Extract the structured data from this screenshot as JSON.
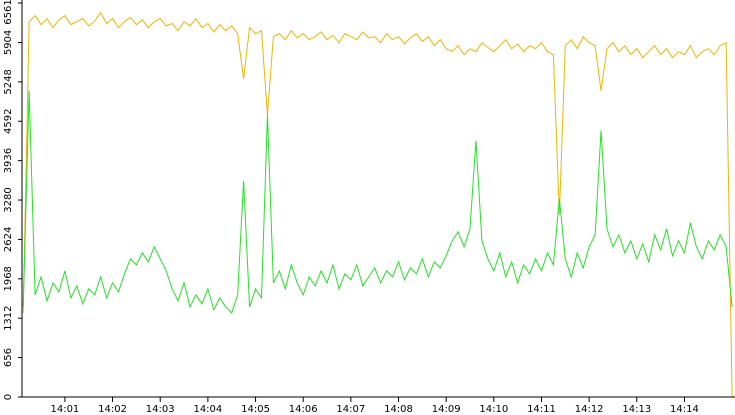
{
  "chart_data": {
    "type": "line",
    "x": [
      0.125,
      0.25,
      0.375,
      0.5,
      0.625,
      0.75,
      0.875,
      1,
      1.125,
      1.25,
      1.375,
      1.5,
      1.625,
      1.75,
      1.875,
      2,
      2.125,
      2.25,
      2.375,
      2.5,
      2.625,
      2.75,
      2.875,
      3,
      3.125,
      3.25,
      3.375,
      3.5,
      3.625,
      3.75,
      3.875,
      4,
      4.125,
      4.25,
      4.375,
      4.5,
      4.625,
      4.75,
      4.875,
      5,
      5.125,
      5.25,
      5.375,
      5.5,
      5.625,
      5.75,
      5.875,
      6,
      6.125,
      6.25,
      6.375,
      6.5,
      6.625,
      6.75,
      6.875,
      7,
      7.125,
      7.25,
      7.375,
      7.5,
      7.625,
      7.75,
      7.875,
      8,
      8.125,
      8.25,
      8.375,
      8.5,
      8.625,
      8.75,
      8.875,
      9,
      9.125,
      9.25,
      9.375,
      9.5,
      9.625,
      9.75,
      9.875,
      10,
      10.125,
      10.25,
      10.375,
      10.5,
      10.625,
      10.75,
      10.875,
      11,
      11.125,
      11.25,
      11.375,
      11.5,
      11.625,
      11.75,
      11.875,
      12,
      12.125,
      12.25,
      12.375,
      12.5,
      12.625,
      12.75,
      12.875,
      13,
      13.125,
      13.25,
      13.375,
      13.5,
      13.625,
      13.75,
      13.875,
      14,
      14.125,
      14.25,
      14.375,
      14.5,
      14.625,
      14.75,
      14.875,
      15
    ],
    "series": [
      {
        "color": "#f0b400",
        "values": [
          1400,
          6250,
          6350,
          6200,
          6300,
          6150,
          6280,
          6350,
          6200,
          6250,
          6300,
          6180,
          6260,
          6400,
          6220,
          6300,
          6150,
          6250,
          6320,
          6200,
          6280,
          6150,
          6250,
          6300,
          6180,
          6220,
          6100,
          6250,
          6180,
          6300,
          6150,
          6220,
          6080,
          6200,
          6100,
          6180,
          6050,
          5300,
          6150,
          6050,
          6100,
          4700,
          6000,
          6050,
          5950,
          6100,
          5980,
          6050,
          5950,
          6000,
          6080,
          5950,
          6020,
          5900,
          6050,
          6000,
          5950,
          6080,
          5980,
          6000,
          5900,
          6050,
          5950,
          6000,
          5880,
          5980,
          6050,
          5920,
          6000,
          5850,
          5950,
          5800,
          5750,
          5850,
          5700,
          5800,
          5750,
          5900,
          5820,
          5750,
          5850,
          5950,
          5800,
          5880,
          5750,
          5850,
          5800,
          5900,
          5750,
          5700,
          3030,
          5850,
          5950,
          5800,
          6000,
          5900,
          5850,
          5100,
          5800,
          5900,
          5750,
          5850,
          5700,
          5800,
          5650,
          5750,
          5850,
          5700,
          5800,
          5650,
          5750,
          5700,
          5850,
          5650,
          5750,
          5800,
          5700,
          5850,
          5900,
          0
        ]
      },
      {
        "color": "#22e322",
        "values": [
          1500,
          5100,
          1700,
          2000,
          1600,
          1900,
          1750,
          2100,
          1650,
          1850,
          1550,
          1800,
          1700,
          2000,
          1650,
          1900,
          1750,
          2050,
          2300,
          2200,
          2400,
          2250,
          2500,
          2300,
          2100,
          1800,
          1600,
          1900,
          1500,
          1700,
          1550,
          1800,
          1450,
          1650,
          1500,
          1400,
          1700,
          3600,
          1500,
          1800,
          1650,
          4700,
          1900,
          2100,
          1800,
          2200,
          1900,
          1700,
          2000,
          1850,
          2100,
          1900,
          2200,
          1800,
          2050,
          1950,
          2200,
          1850,
          2000,
          2150,
          1900,
          2100,
          2000,
          2250,
          1950,
          2150,
          2050,
          2300,
          2000,
          2250,
          2150,
          2350,
          2600,
          2750,
          2500,
          2800,
          4270,
          2600,
          2300,
          2100,
          2400,
          2000,
          2250,
          1900,
          2200,
          2050,
          2300,
          2100,
          2400,
          2200,
          3300,
          2300,
          2000,
          2400,
          2150,
          2500,
          2700,
          4440,
          2800,
          2500,
          2700,
          2400,
          2600,
          2300,
          2550,
          2250,
          2700,
          2450,
          2800,
          2350,
          2600,
          2400,
          2900,
          2500,
          2300,
          2600,
          2450,
          2700,
          2500,
          1500
        ]
      }
    ],
    "xlim": [
      0.1,
      15.05
    ],
    "xticks": [
      {
        "value": 1,
        "label": "14:01"
      },
      {
        "value": 2,
        "label": "14:02"
      },
      {
        "value": 3,
        "label": "14:03"
      },
      {
        "value": 4,
        "label": "14:04"
      },
      {
        "value": 5,
        "label": "14:05"
      },
      {
        "value": 6,
        "label": "14:06"
      },
      {
        "value": 7,
        "label": "14:07"
      },
      {
        "value": 8,
        "label": "14:08"
      },
      {
        "value": 9,
        "label": "14:09"
      },
      {
        "value": 10,
        "label": "14:10"
      },
      {
        "value": 11,
        "label": "14:11"
      },
      {
        "value": 12,
        "label": "14:12"
      },
      {
        "value": 13,
        "label": "14:13"
      },
      {
        "value": 14,
        "label": "14:14"
      }
    ],
    "ylim": [
      0,
      6561
    ],
    "yticks": [
      0,
      656,
      1312,
      1968,
      2624,
      3280,
      3936,
      4592,
      5248,
      5904,
      6561
    ]
  }
}
